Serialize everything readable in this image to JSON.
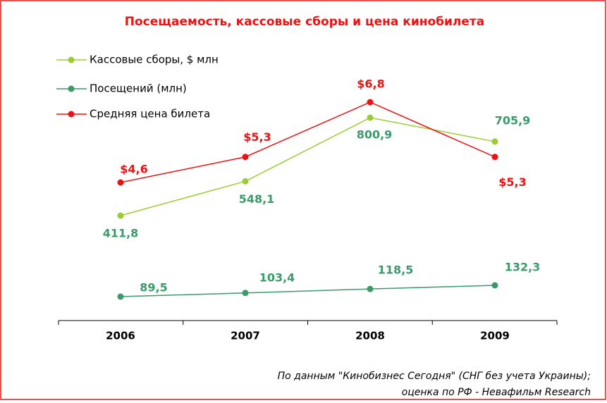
{
  "chart_data": {
    "type": "line",
    "title": "Посещаемость, кассовые сборы и цена кинобилета",
    "categories": [
      "2006",
      "2007",
      "2008",
      "2009"
    ],
    "series": [
      {
        "name": "Кассовые сборы, $ млн",
        "color": "#9acd32",
        "label_color": "#3a9a6a",
        "values": [
          411.8,
          548.1,
          800.9,
          705.9
        ],
        "value_labels": [
          "411,8",
          "548,1",
          "800,9",
          "705,9"
        ]
      },
      {
        "name": "Посещений (млн)",
        "color": "#3a9a6a",
        "label_color": "#3a9a6a",
        "values": [
          89.5,
          103.4,
          118.5,
          132.3
        ],
        "value_labels": [
          "89,5",
          "103,4",
          "118,5",
          "132,3"
        ]
      },
      {
        "name": "Средняя цена билета",
        "color": "#ee1111",
        "label_color": "#ee1111",
        "values": [
          4.6,
          5.3,
          6.8,
          5.3
        ],
        "value_labels": [
          "$4,6",
          "$5,3",
          "$6,8",
          "$5,3"
        ]
      }
    ],
    "notes": [
      "По данным \"Кинобизнес Сегодня\" (СНГ без учета Украины);",
      "оценка по РФ - Невафильм  Research"
    ]
  }
}
